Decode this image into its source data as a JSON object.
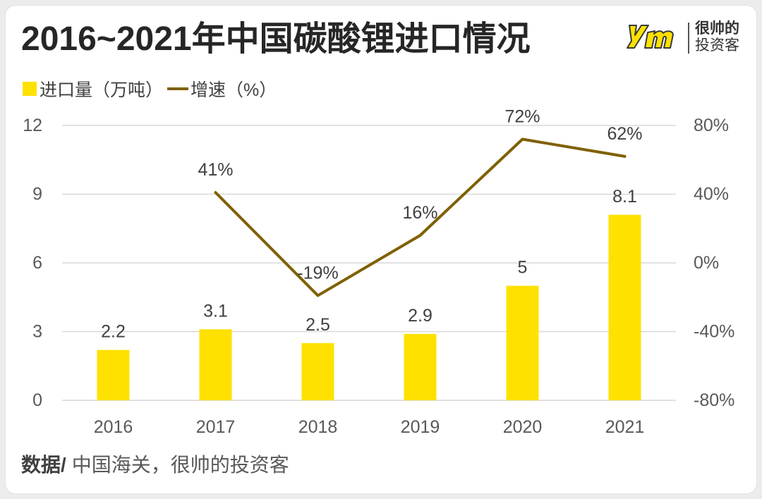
{
  "brand": {
    "line1": "很帅的",
    "line2": "投资客",
    "logo_color": "#FFE100"
  },
  "source": {
    "label": "数据/",
    "text": "中国海关，很帅的投资客"
  },
  "colors": {
    "bar": "#FFE100",
    "line": "#7F6000",
    "grid": "#d9d9d9",
    "axis_text": "#595959",
    "data_label": "#404040"
  },
  "chart_data": {
    "type": "bar",
    "title": "2016~2021年中国碳酸锂进口情况",
    "categories": [
      "2016",
      "2017",
      "2018",
      "2019",
      "2020",
      "2021"
    ],
    "series": [
      {
        "name": "进口量（万吨）",
        "type": "bar",
        "axis": "left",
        "color": "#FFE100",
        "values": [
          2.2,
          3.1,
          2.5,
          2.9,
          5,
          8.1
        ]
      },
      {
        "name": "增速（%）",
        "type": "line",
        "axis": "right",
        "color": "#7F6000",
        "unit": "%",
        "values": [
          null,
          41,
          -19,
          16,
          72,
          62
        ]
      }
    ],
    "y_left": {
      "range": [
        0,
        12
      ],
      "ticks": [
        0,
        3,
        6,
        9,
        12
      ],
      "tick_labels": [
        "0",
        "3",
        "6",
        "9",
        "12"
      ]
    },
    "y_right": {
      "range": [
        -80,
        80
      ],
      "ticks": [
        -80,
        -40,
        0,
        40,
        80
      ],
      "tick_labels": [
        "-80%",
        "-40%",
        "0%",
        "40%",
        "80%"
      ]
    },
    "grid": true,
    "legend": "top-left"
  }
}
